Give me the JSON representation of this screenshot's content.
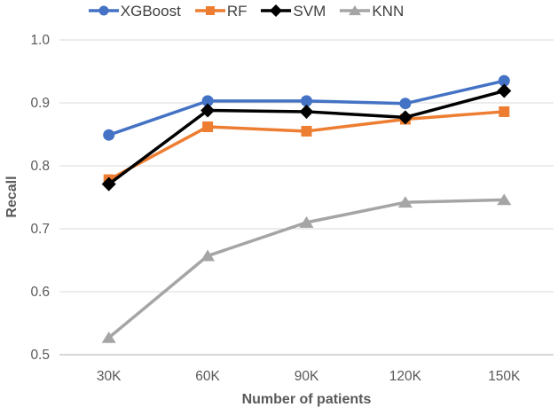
{
  "chart_data": {
    "type": "line",
    "title": "",
    "xlabel": "Number of patients",
    "ylabel": "Recall",
    "categories": [
      "30K",
      "60K",
      "90K",
      "120K",
      "150K"
    ],
    "series": [
      {
        "name": "XGBoost",
        "color": "#4472C4",
        "marker": "circle",
        "values": [
          0.849,
          0.903,
          0.903,
          0.899,
          0.935
        ]
      },
      {
        "name": "RF",
        "color": "#ED7D31",
        "marker": "square",
        "values": [
          0.778,
          0.862,
          0.855,
          0.874,
          0.886
        ]
      },
      {
        "name": "SVM",
        "color": "#000000",
        "marker": "diamond",
        "values": [
          0.771,
          0.888,
          0.886,
          0.877,
          0.919
        ]
      },
      {
        "name": "KNN",
        "color": "#A5A5A5",
        "marker": "triangle",
        "values": [
          0.527,
          0.657,
          0.71,
          0.742,
          0.746
        ]
      }
    ],
    "ylim": [
      0.5,
      1.0
    ],
    "yticks": [
      0.5,
      0.6,
      0.7,
      0.8,
      0.9,
      1.0
    ],
    "ytick_labels": [
      "0.5",
      "0.6",
      "0.7",
      "0.8",
      "0.9",
      "1.0"
    ],
    "grid": "horizontal",
    "legend_position": "top",
    "colors": {
      "gridline": "#D9D9D9",
      "axis_line": "#BFBFBF",
      "tick_text": "#595959",
      "axis_title_text": "#595959",
      "legend_text": "#404040"
    }
  }
}
